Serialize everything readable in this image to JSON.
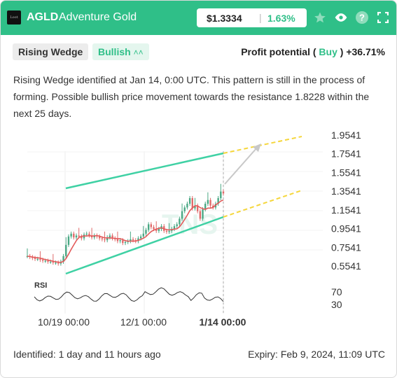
{
  "header": {
    "logo_text": "Loot",
    "symbol": "AGLD",
    "name": "Adventure Gold",
    "price": "$1.3334",
    "separator": "|",
    "change": "1.63%",
    "icons": [
      "star-icon",
      "eye-icon",
      "help-icon",
      "expand-icon"
    ]
  },
  "pattern": {
    "name": "Rising Wedge",
    "direction": "Bullish",
    "direction_arrow": "˄˄",
    "profit_label": "Profit potential (",
    "profit_action": "Buy",
    "profit_close": ")",
    "profit_value": "+36.71%"
  },
  "description": "Rising Wedge identified at Jan 14, 0:00 UTC. This pattern is still in the process of forming. Possible bullish price movement towards the resistance 1.8228 within the next 25 days.",
  "chart_data": {
    "type": "line",
    "title": "",
    "y_ticks": [
      "1.9541",
      "1.7541",
      "1.5541",
      "1.3541",
      "1.1541",
      "0.9541",
      "0.7541",
      "0.5541"
    ],
    "x_ticks": [
      "10/19 00:00",
      "12/1 00:00",
      "1/14 00:00"
    ],
    "ylim": [
      0.5541,
      1.9541
    ],
    "indicator": {
      "label": "RSI",
      "ticks": [
        "70",
        "30"
      ]
    },
    "watermark": "TNS",
    "colors": {
      "wedge": "#3fd1a4",
      "projection": "#f5d63a",
      "ma": "#e35a5a",
      "candle_up": "#4aa884",
      "candle_down": "#e06a6a",
      "arrow": "#c8c8c8"
    },
    "price_series": [
      0.66,
      0.65,
      0.64,
      0.63,
      0.63,
      0.62,
      0.61,
      0.61,
      0.6,
      0.6,
      0.59,
      0.59,
      0.58,
      0.6,
      0.66,
      0.78,
      0.87,
      0.9,
      0.86,
      0.88,
      0.87,
      0.85,
      0.89,
      0.9,
      0.88,
      0.86,
      0.88,
      0.87,
      0.85,
      0.84,
      0.83,
      0.86,
      0.88,
      0.85,
      0.84,
      0.82,
      0.83,
      0.8,
      0.81,
      0.82,
      0.84,
      0.83,
      0.82,
      0.85,
      0.87,
      0.9,
      0.94,
      1.0,
      0.97,
      0.95,
      0.93,
      0.95,
      0.98,
      0.93,
      0.92,
      0.93,
      0.95,
      0.98,
      1.0,
      1.06,
      1.14,
      1.18,
      1.22,
      1.28,
      1.17,
      1.2,
      1.14,
      1.06,
      1.16,
      1.22,
      1.26,
      1.2,
      1.18,
      1.22,
      1.28,
      1.35,
      1.33
    ]
  },
  "footer": {
    "identified": "Identified: 1 day and 11 hours ago",
    "expiry": "Expiry: Feb 9, 2024, 11:09 UTC"
  }
}
